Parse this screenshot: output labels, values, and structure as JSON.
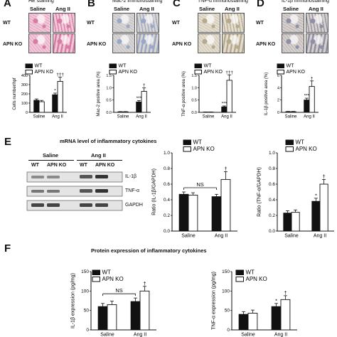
{
  "micrographs": {
    "groups": [
      "Saline",
      "Ang II"
    ],
    "rows": [
      "WT",
      "APN KO"
    ],
    "panels": [
      {
        "letter": "A",
        "title": "HE staining",
        "tint": "#d77ca3",
        "light": "#f1c6d8"
      },
      {
        "letter": "B",
        "title": "Mac-2 immunostaining",
        "tint": "#9aa8c8",
        "light": "#d9d4cf"
      },
      {
        "letter": "C",
        "title": "TNF-α immunostaining",
        "tint": "#b7a98d",
        "light": "#e3ddd0"
      },
      {
        "letter": "D",
        "title": "IL-1β immunostaining",
        "tint": "#8f8fa6",
        "light": "#d7cfca"
      }
    ]
  },
  "legend": {
    "wt": "WT",
    "ko": "APN KO"
  },
  "charts_top": [
    {
      "ylabel": "Cells number/hpf",
      "yticks": [
        "0",
        "100",
        "200",
        "300",
        "400"
      ],
      "categories": [
        "Saline",
        "Ang II"
      ],
      "sig": {
        "wt_ang": "*",
        "ko_ang": "†††"
      }
    },
    {
      "ylabel": "Mac-2 positive area (%)",
      "yticks": [
        "0.0",
        "0.5",
        "1.0",
        "1.5"
      ],
      "categories": [
        "Saline",
        "Ang II"
      ],
      "sig": {
        "wt_ang": "***",
        "ko_ang": "†"
      }
    },
    {
      "ylabel": "TNF-α positive area (%)",
      "yticks": [
        "0.0",
        "0.5",
        "1.0",
        "1.5"
      ],
      "categories": [
        "Saline",
        "Ang II"
      ],
      "sig": {
        "wt_ang": "***",
        "ko_ang": "†††"
      }
    },
    {
      "ylabel": "IL-1β positive area (%)",
      "yticks": [
        "0",
        "2",
        "4",
        "6"
      ],
      "categories": [
        "Saline",
        "Ang II"
      ],
      "sig": {
        "wt_ang": "***",
        "ko_ang": "†"
      }
    }
  ],
  "section_e": {
    "letter": "E",
    "title": "mRNA level of inflammatory cytokines",
    "gel": {
      "groups": [
        "Saline",
        "Ang II"
      ],
      "lanes": [
        "WT",
        "APN KO",
        "WT",
        "APN KO"
      ],
      "bands": [
        "IL-1β",
        "TNF-α",
        "GAPDH"
      ]
    },
    "chart_il1b": {
      "ylabel": "Ratio (IL-1β/GAPDH)",
      "yticks": [
        "0.0",
        "0.2",
        "0.4",
        "0.6",
        "0.8",
        "1.0"
      ],
      "categories": [
        "Saline",
        "Ang II"
      ],
      "ns": "NS",
      "sig": {
        "ko_ang": "†"
      }
    },
    "chart_tnfa": {
      "ylabel": "Ratio (TNF-α/GAPDH)",
      "yticks": [
        "0.0",
        "0.2",
        "0.4",
        "0.6",
        "0.8",
        "1.0"
      ],
      "categories": [
        "Saline",
        "Ang II"
      ],
      "sig": {
        "wt_ang": "*",
        "ko_ang": "†"
      }
    }
  },
  "section_f": {
    "letter": "F",
    "title": "Protein expression of inflammatory cytokines",
    "chart_il1b": {
      "ylabel": "IL-1β expression (pg/mg)",
      "yticks": [
        "0",
        "50",
        "100",
        "150"
      ],
      "categories": [
        "Saline",
        "Ang II"
      ],
      "ns": "NS",
      "sig": {
        "ko_ang": "†"
      }
    },
    "chart_tnfa": {
      "ylabel": "TNF-α expression (pg/mg)",
      "yticks": [
        "0",
        "50",
        "100",
        "150"
      ],
      "categories": [
        "Saline",
        "Ang II"
      ],
      "sig": {
        "wt_ang": "*",
        "ko_ang": "†"
      }
    }
  },
  "chart_data": [
    {
      "type": "bar",
      "categories": [
        "Saline",
        "Ang II"
      ],
      "ylim": [
        0,
        400
      ],
      "series": [
        {
          "name": "WT",
          "values": [
            130,
            190
          ],
          "errors": [
            15,
            18
          ]
        },
        {
          "name": "APN KO",
          "values": [
            115,
            335
          ],
          "errors": [
            14,
            45
          ]
        }
      ]
    },
    {
      "type": "bar",
      "categories": [
        "Saline",
        "Ang II"
      ],
      "ylim": [
        0,
        1.5
      ],
      "series": [
        {
          "name": "WT",
          "values": [
            0.02,
            0.42
          ],
          "errors": [
            0.01,
            0.06
          ]
        },
        {
          "name": "APN KO",
          "values": [
            0.02,
            0.85
          ],
          "errors": [
            0.01,
            0.14
          ]
        }
      ]
    },
    {
      "type": "bar",
      "categories": [
        "Saline",
        "Ang II"
      ],
      "ylim": [
        0,
        1.5
      ],
      "series": [
        {
          "name": "WT",
          "values": [
            0.01,
            0.22
          ],
          "errors": [
            0.005,
            0.04
          ]
        },
        {
          "name": "APN KO",
          "values": [
            0.01,
            1.3
          ],
          "errors": [
            0.005,
            0.22
          ]
        }
      ]
    },
    {
      "type": "bar",
      "categories": [
        "Saline",
        "Ang II"
      ],
      "ylim": [
        0,
        6
      ],
      "series": [
        {
          "name": "WT",
          "values": [
            0.1,
            2.0
          ],
          "errors": [
            0.05,
            0.3
          ]
        },
        {
          "name": "APN KO",
          "values": [
            0.1,
            4.2
          ],
          "errors": [
            0.05,
            0.9
          ]
        }
      ]
    },
    {
      "type": "bar",
      "categories": [
        "Saline",
        "Ang II"
      ],
      "ylim": [
        0,
        1.0
      ],
      "series": [
        {
          "name": "WT",
          "values": [
            0.47,
            0.44
          ],
          "errors": [
            0.03,
            0.03
          ]
        },
        {
          "name": "APN KO",
          "values": [
            0.46,
            0.66
          ],
          "errors": [
            0.03,
            0.1
          ]
        }
      ]
    },
    {
      "type": "bar",
      "categories": [
        "Saline",
        "Ang II"
      ],
      "ylim": [
        0,
        1.0
      ],
      "series": [
        {
          "name": "WT",
          "values": [
            0.23,
            0.38
          ],
          "errors": [
            0.03,
            0.04
          ]
        },
        {
          "name": "APN KO",
          "values": [
            0.24,
            0.6
          ],
          "errors": [
            0.03,
            0.06
          ]
        }
      ]
    },
    {
      "type": "bar",
      "categories": [
        "Saline",
        "Ang II"
      ],
      "ylim": [
        0,
        150
      ],
      "series": [
        {
          "name": "WT",
          "values": [
            60,
            73
          ],
          "errors": [
            8,
            9
          ]
        },
        {
          "name": "APN KO",
          "values": [
            65,
            100
          ],
          "errors": [
            9,
            12
          ]
        }
      ]
    },
    {
      "type": "bar",
      "categories": [
        "Saline",
        "Ang II"
      ],
      "ylim": [
        0,
        150
      ],
      "series": [
        {
          "name": "WT",
          "values": [
            40,
            60
          ],
          "errors": [
            7,
            8
          ]
        },
        {
          "name": "APN KO",
          "values": [
            43,
            78
          ],
          "errors": [
            8,
            10
          ]
        }
      ]
    }
  ]
}
